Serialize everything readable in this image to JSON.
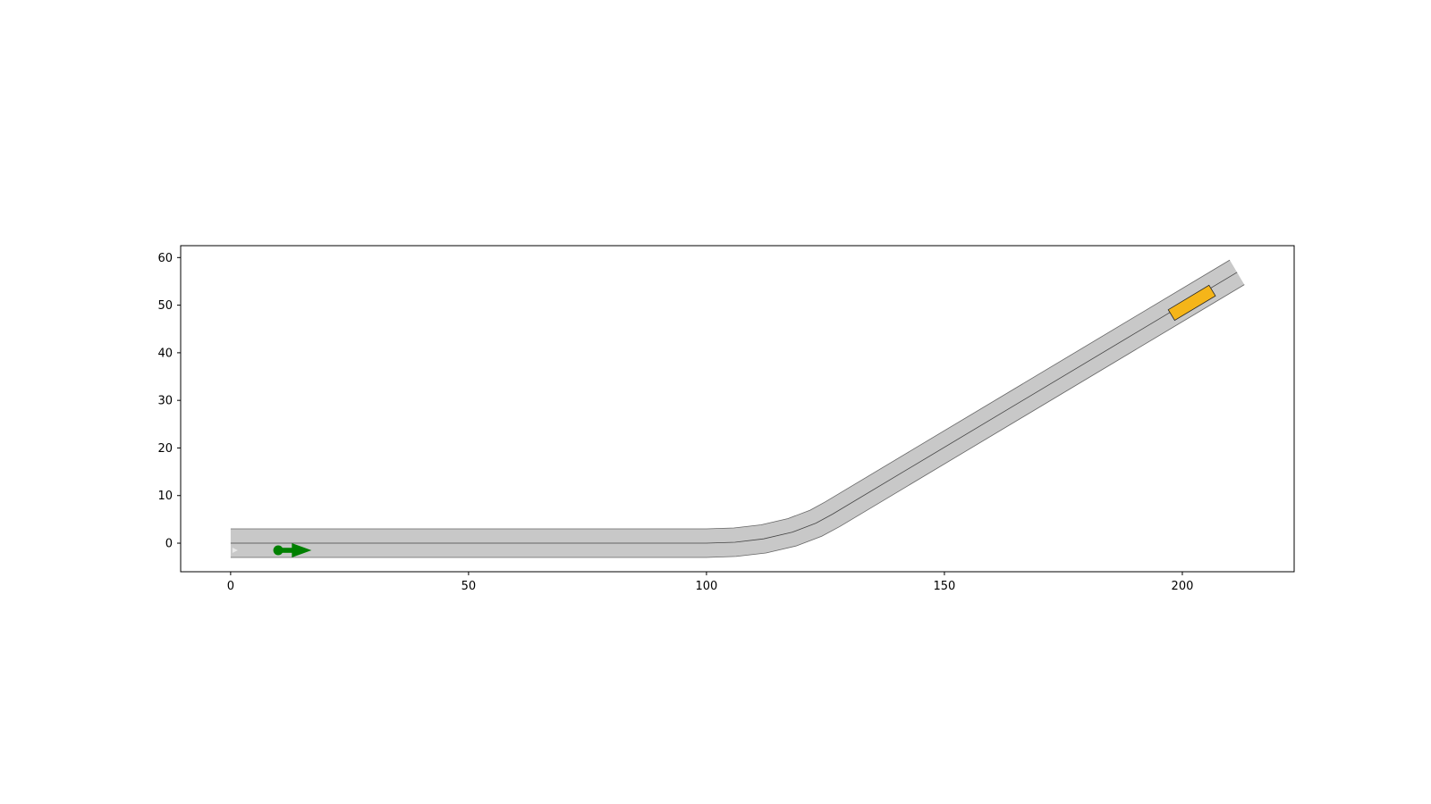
{
  "chart_data": {
    "type": "scatter",
    "title": "",
    "xlabel": "",
    "ylabel": "",
    "xlim": [
      -10.5,
      223.5
    ],
    "ylim": [
      -6,
      62.5
    ],
    "xticks": [
      0,
      50,
      100,
      150,
      200
    ],
    "yticks": [
      0,
      10,
      20,
      30,
      40,
      50,
      60
    ],
    "xtick_labels": [
      "0",
      "50",
      "100",
      "150",
      "200"
    ],
    "ytick_labels": [
      "0",
      "10",
      "20",
      "30",
      "40",
      "50",
      "60"
    ],
    "grid": false,
    "legend": "none",
    "road": {
      "lane_width": 3.0,
      "centerline": [
        [
          0,
          0
        ],
        [
          100,
          0
        ],
        [
          106,
          0.2
        ],
        [
          112,
          0.9
        ],
        [
          118,
          2.3
        ],
        [
          123,
          4.2
        ],
        [
          126.5,
          6.1
        ],
        [
          211.5,
          56.9
        ]
      ],
      "fill_color": "#c8c8c8",
      "edge_color": "#666666",
      "centerline_color": "#444444"
    },
    "ego_vehicle": {
      "position": [
        10,
        -1.5
      ],
      "heading": [
        7,
        0
      ],
      "color": "#008000"
    },
    "other_vehicle": {
      "center": [
        202,
        50.5
      ],
      "length": 10,
      "width": 2.6,
      "heading_deg": 31,
      "color": "#f5b519"
    }
  }
}
